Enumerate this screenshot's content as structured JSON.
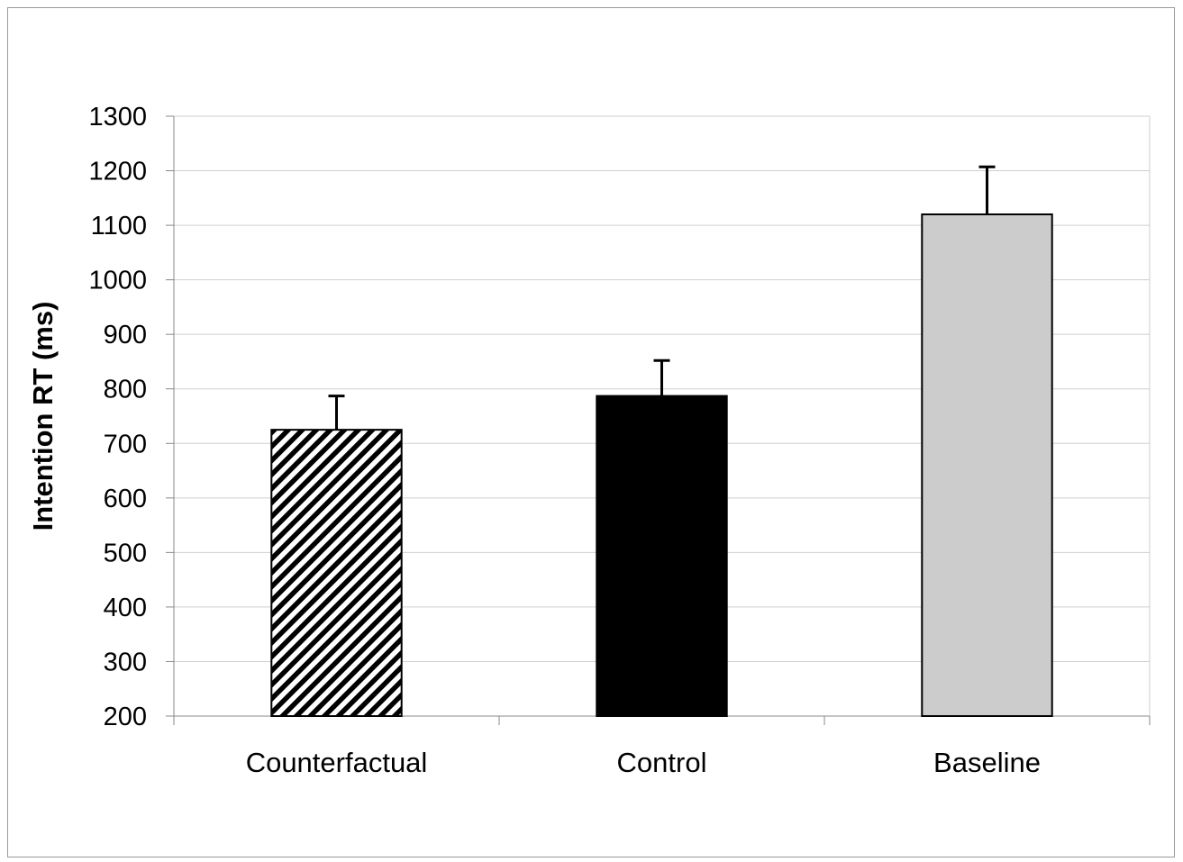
{
  "chart_data": {
    "type": "bar",
    "title": "",
    "xlabel": "",
    "ylabel": "Intention RT (ms)",
    "ylim": [
      200,
      1300
    ],
    "yticks": [
      200,
      300,
      400,
      500,
      600,
      700,
      800,
      900,
      1000,
      1100,
      1200,
      1300
    ],
    "grid": true,
    "legend": "none",
    "categories": [
      "Counterfactual",
      "Control",
      "Baseline"
    ],
    "values": [
      725,
      787,
      1120
    ],
    "error_bars": [
      62,
      65,
      87
    ],
    "bar_styles": [
      {
        "fill": "hatched-diagonal",
        "color": "#000000"
      },
      {
        "fill": "solid",
        "color": "#000000"
      },
      {
        "fill": "solid",
        "color": "#cccccc"
      }
    ]
  }
}
